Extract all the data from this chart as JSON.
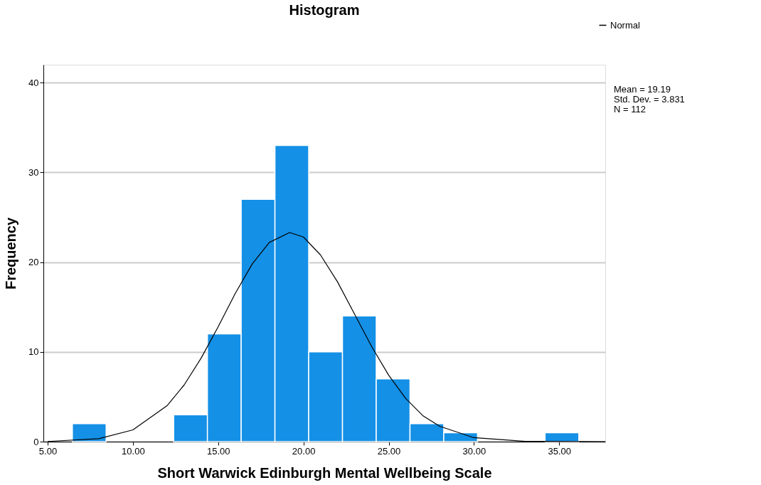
{
  "chart_data": {
    "type": "histogram",
    "title": "Histogram",
    "xlabel": "Short Warwick Edinburgh Mental Wellbeing Scale",
    "ylabel": "Frequency",
    "bins": [
      6.45,
      8.43,
      10.41,
      12.39,
      14.37,
      16.35,
      18.33,
      20.31,
      22.29,
      24.27,
      26.25,
      28.23,
      30.21,
      32.19,
      34.17,
      36.15
    ],
    "values": [
      2,
      0,
      0,
      3,
      12,
      27,
      33,
      10,
      14,
      7,
      2,
      1,
      0,
      0,
      1
    ],
    "color": "#1490e6",
    "series": [
      {
        "name": "Normal",
        "type": "line",
        "color": "#000000",
        "x": [
          5,
          8,
          10,
          12,
          13,
          14,
          15,
          16,
          17,
          18,
          19.19,
          20,
          21,
          22,
          23,
          24,
          25,
          26,
          27,
          28,
          30,
          33,
          37.7
        ],
        "values": [
          0.02,
          0.33,
          1.31,
          4.0,
          6.3,
          9.3,
          12.8,
          16.5,
          19.8,
          22.2,
          23.3,
          22.8,
          20.8,
          17.8,
          14.2,
          10.6,
          7.4,
          4.8,
          2.9,
          1.7,
          0.44,
          0.03,
          0
        ]
      }
    ],
    "xlim": [
      4.75,
      37.7
    ],
    "ylim": [
      0,
      42
    ],
    "xticks": [
      {
        "value": 5,
        "label": "5.00"
      },
      {
        "value": 10,
        "label": "10.00"
      },
      {
        "value": 15,
        "label": "15.00"
      },
      {
        "value": 20,
        "label": "20.00"
      },
      {
        "value": 25,
        "label": "25.00"
      },
      {
        "value": 30,
        "label": "30.00"
      },
      {
        "value": 35,
        "label": "35.00"
      }
    ],
    "yticks": [
      0,
      10,
      20,
      30,
      40
    ],
    "grid": "y",
    "legend": "top right",
    "annotations": [
      "Mean = 19.19",
      "Std. Dev. = 3.831",
      "N = 112"
    ]
  }
}
